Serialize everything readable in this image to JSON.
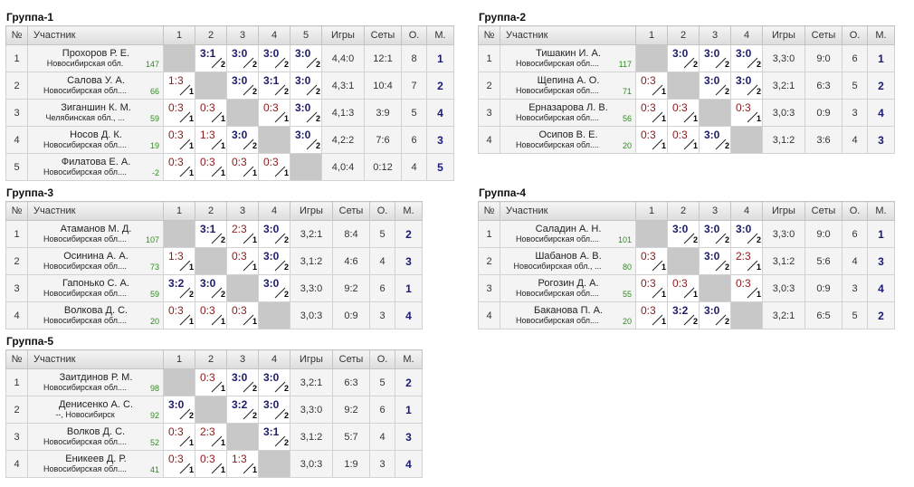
{
  "headers": {
    "num": "№",
    "participant": "Участник",
    "games": "Игры",
    "sets": "Сеты",
    "points": "О.",
    "place": "М."
  },
  "groups": [
    {
      "title": "Группа-1",
      "cols": [
        "1",
        "2",
        "3",
        "4",
        "5"
      ],
      "rows": [
        {
          "num": "1",
          "name": "Прохоров Р. Е.",
          "city": "Новосибирская обл.",
          "rating": "147",
          "cells": [
            null,
            {
              "s": "3:1",
              "p": "2",
              "w": true
            },
            {
              "s": "3:0",
              "p": "2",
              "w": true
            },
            {
              "s": "3:0",
              "p": "2",
              "w": true
            },
            {
              "s": "3:0",
              "p": "2",
              "w": true
            }
          ],
          "games": "4,4:0",
          "sets": "12:1",
          "points": "8",
          "place": "1"
        },
        {
          "num": "2",
          "name": "Салова У. А.",
          "city": "Новосибирская обл....",
          "rating": "66",
          "cells": [
            {
              "s": "1:3",
              "p": "1",
              "w": false
            },
            null,
            {
              "s": "3:0",
              "p": "2",
              "w": true
            },
            {
              "s": "3:1",
              "p": "2",
              "w": true
            },
            {
              "s": "3:0",
              "p": "2",
              "w": true
            }
          ],
          "games": "4,3:1",
          "sets": "10:4",
          "points": "7",
          "place": "2"
        },
        {
          "num": "3",
          "name": "Зиганшин К. М.",
          "city": "Челябинская обл., ...",
          "rating": "59",
          "cells": [
            {
              "s": "0:3",
              "p": "1",
              "w": false
            },
            {
              "s": "0:3",
              "p": "1",
              "w": false
            },
            null,
            {
              "s": "0:3",
              "p": "1",
              "w": false
            },
            {
              "s": "3:0",
              "p": "2",
              "w": true
            }
          ],
          "games": "4,1:3",
          "sets": "3:9",
          "points": "5",
          "place": "4"
        },
        {
          "num": "4",
          "name": "Носов Д. К.",
          "city": "Новосибирская обл....",
          "rating": "19",
          "cells": [
            {
              "s": "0:3",
              "p": "1",
              "w": false
            },
            {
              "s": "1:3",
              "p": "1",
              "w": false
            },
            {
              "s": "3:0",
              "p": "2",
              "w": true
            },
            null,
            {
              "s": "3:0",
              "p": "2",
              "w": true
            }
          ],
          "games": "4,2:2",
          "sets": "7:6",
          "points": "6",
          "place": "3"
        },
        {
          "num": "5",
          "name": "Филатова Е. А.",
          "city": "Новосибирская обл....",
          "rating": "-2",
          "cells": [
            {
              "s": "0:3",
              "p": "1",
              "w": false
            },
            {
              "s": "0:3",
              "p": "1",
              "w": false
            },
            {
              "s": "0:3",
              "p": "1",
              "w": false
            },
            {
              "s": "0:3",
              "p": "1",
              "w": false
            },
            null
          ],
          "games": "4,0:4",
          "sets": "0:12",
          "points": "4",
          "place": "5"
        }
      ]
    },
    {
      "title": "Группа-2",
      "cols": [
        "1",
        "2",
        "3",
        "4"
      ],
      "rows": [
        {
          "num": "1",
          "name": "Тишакин И. А.",
          "city": "Новосибирская обл....",
          "rating": "117",
          "cells": [
            null,
            {
              "s": "3:0",
              "p": "2",
              "w": true
            },
            {
              "s": "3:0",
              "p": "2",
              "w": true
            },
            {
              "s": "3:0",
              "p": "2",
              "w": true
            }
          ],
          "games": "3,3:0",
          "sets": "9:0",
          "points": "6",
          "place": "1"
        },
        {
          "num": "2",
          "name": "Щепина А. О.",
          "city": "Новосибирская обл....",
          "rating": "71",
          "cells": [
            {
              "s": "0:3",
              "p": "1",
              "w": false
            },
            null,
            {
              "s": "3:0",
              "p": "2",
              "w": true
            },
            {
              "s": "3:0",
              "p": "2",
              "w": true
            }
          ],
          "games": "3,2:1",
          "sets": "6:3",
          "points": "5",
          "place": "2"
        },
        {
          "num": "3",
          "name": "Ерназарова Л. В.",
          "city": "Новосибирская обл....",
          "rating": "56",
          "cells": [
            {
              "s": "0:3",
              "p": "1",
              "w": false
            },
            {
              "s": "0:3",
              "p": "1",
              "w": false
            },
            null,
            {
              "s": "0:3",
              "p": "1",
              "w": false
            }
          ],
          "games": "3,0:3",
          "sets": "0:9",
          "points": "3",
          "place": "4"
        },
        {
          "num": "4",
          "name": "Осипов В. Е.",
          "city": "Новосибирская обл....",
          "rating": "20",
          "cells": [
            {
              "s": "0:3",
              "p": "1",
              "w": false
            },
            {
              "s": "0:3",
              "p": "1",
              "w": false
            },
            {
              "s": "3:0",
              "p": "2",
              "w": true
            },
            null
          ],
          "games": "3,1:2",
          "sets": "3:6",
          "points": "4",
          "place": "3"
        }
      ]
    },
    {
      "title": "Группа-3",
      "cols": [
        "1",
        "2",
        "3",
        "4"
      ],
      "rows": [
        {
          "num": "1",
          "name": "Атаманов М. Д.",
          "city": "Новосибирская обл....",
          "rating": "107",
          "cells": [
            null,
            {
              "s": "3:1",
              "p": "2",
              "w": true
            },
            {
              "s": "2:3",
              "p": "1",
              "w": false
            },
            {
              "s": "3:0",
              "p": "2",
              "w": true
            }
          ],
          "games": "3,2:1",
          "sets": "8:4",
          "points": "5",
          "place": "2"
        },
        {
          "num": "2",
          "name": "Осинина А. А.",
          "city": "Новосибирская обл....",
          "rating": "73",
          "cells": [
            {
              "s": "1:3",
              "p": "1",
              "w": false
            },
            null,
            {
              "s": "0:3",
              "p": "1",
              "w": false
            },
            {
              "s": "3:0",
              "p": "2",
              "w": true
            }
          ],
          "games": "3,1:2",
          "sets": "4:6",
          "points": "4",
          "place": "3"
        },
        {
          "num": "3",
          "name": "Гапонько С. А.",
          "city": "Новосибирская обл....",
          "rating": "59",
          "cells": [
            {
              "s": "3:2",
              "p": "2",
              "w": true
            },
            {
              "s": "3:0",
              "p": "2",
              "w": true
            },
            null,
            {
              "s": "3:0",
              "p": "2",
              "w": true
            }
          ],
          "games": "3,3:0",
          "sets": "9:2",
          "points": "6",
          "place": "1"
        },
        {
          "num": "4",
          "name": "Волкова Д. С.",
          "city": "Новосибирская обл....",
          "rating": "20",
          "cells": [
            {
              "s": "0:3",
              "p": "1",
              "w": false
            },
            {
              "s": "0:3",
              "p": "1",
              "w": false
            },
            {
              "s": "0:3",
              "p": "1",
              "w": false
            },
            null
          ],
          "games": "3,0:3",
          "sets": "0:9",
          "points": "3",
          "place": "4"
        }
      ]
    },
    {
      "title": "Группа-4",
      "cols": [
        "1",
        "2",
        "3",
        "4"
      ],
      "rows": [
        {
          "num": "1",
          "name": "Саладин А. Н.",
          "city": "Новосибирская обл....",
          "rating": "101",
          "cells": [
            null,
            {
              "s": "3:0",
              "p": "2",
              "w": true
            },
            {
              "s": "3:0",
              "p": "2",
              "w": true
            },
            {
              "s": "3:0",
              "p": "2",
              "w": true
            }
          ],
          "games": "3,3:0",
          "sets": "9:0",
          "points": "6",
          "place": "1"
        },
        {
          "num": "2",
          "name": "Шабанов А. В.",
          "city": "Новосибирская обл., ...",
          "rating": "80",
          "cells": [
            {
              "s": "0:3",
              "p": "1",
              "w": false
            },
            null,
            {
              "s": "3:0",
              "p": "2",
              "w": true
            },
            {
              "s": "2:3",
              "p": "1",
              "w": false
            }
          ],
          "games": "3,1:2",
          "sets": "5:6",
          "points": "4",
          "place": "3"
        },
        {
          "num": "3",
          "name": "Рогозин Д. А.",
          "city": "Новосибирская обл....",
          "rating": "55",
          "cells": [
            {
              "s": "0:3",
              "p": "1",
              "w": false
            },
            {
              "s": "0:3",
              "p": "1",
              "w": false
            },
            null,
            {
              "s": "0:3",
              "p": "1",
              "w": false
            }
          ],
          "games": "3,0:3",
          "sets": "0:9",
          "points": "3",
          "place": "4"
        },
        {
          "num": "4",
          "name": "Баканова П. А.",
          "city": "Новосибирская обл....",
          "rating": "20",
          "cells": [
            {
              "s": "0:3",
              "p": "1",
              "w": false
            },
            {
              "s": "3:2",
              "p": "2",
              "w": true
            },
            {
              "s": "3:0",
              "p": "2",
              "w": true
            },
            null
          ],
          "games": "3,2:1",
          "sets": "6:5",
          "points": "5",
          "place": "2"
        }
      ]
    },
    {
      "title": "Группа-5",
      "cols": [
        "1",
        "2",
        "3",
        "4"
      ],
      "rows": [
        {
          "num": "1",
          "name": "Заитдинов Р. М.",
          "city": "Новосибирская обл....",
          "rating": "98",
          "cells": [
            null,
            {
              "s": "0:3",
              "p": "1",
              "w": false
            },
            {
              "s": "3:0",
              "p": "2",
              "w": true
            },
            {
              "s": "3:0",
              "p": "2",
              "w": true
            }
          ],
          "games": "3,2:1",
          "sets": "6:3",
          "points": "5",
          "place": "2"
        },
        {
          "num": "2",
          "name": "Денисенко А. С.",
          "city": "--, Новосибирск",
          "rating": "92",
          "cells": [
            {
              "s": "3:0",
              "p": "2",
              "w": true
            },
            null,
            {
              "s": "3:2",
              "p": "2",
              "w": true
            },
            {
              "s": "3:0",
              "p": "2",
              "w": true
            }
          ],
          "games": "3,3:0",
          "sets": "9:2",
          "points": "6",
          "place": "1"
        },
        {
          "num": "3",
          "name": "Волков Д. С.",
          "city": "Новосибирская обл....",
          "rating": "52",
          "cells": [
            {
              "s": "0:3",
              "p": "1",
              "w": false
            },
            {
              "s": "2:3",
              "p": "1",
              "w": false
            },
            null,
            {
              "s": "3:1",
              "p": "2",
              "w": true
            }
          ],
          "games": "3,1:2",
          "sets": "5:7",
          "points": "4",
          "place": "3"
        },
        {
          "num": "4",
          "name": "Еникеев Д. Р.",
          "city": "Новосибирская обл....",
          "rating": "41",
          "cells": [
            {
              "s": "0:3",
              "p": "1",
              "w": false
            },
            {
              "s": "0:3",
              "p": "1",
              "w": false
            },
            {
              "s": "1:3",
              "p": "1",
              "w": false
            },
            null
          ],
          "games": "3,0:3",
          "sets": "1:9",
          "points": "3",
          "place": "4"
        }
      ]
    }
  ]
}
